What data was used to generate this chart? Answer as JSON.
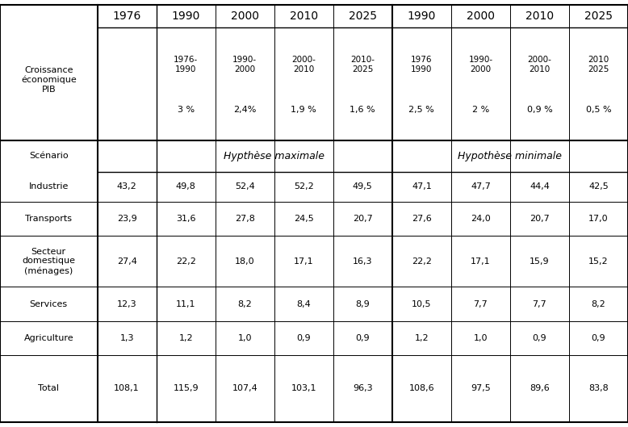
{
  "col_headers_top": [
    "1976",
    "1990",
    "2000",
    "2010",
    "2025",
    "1990",
    "2000",
    "2010",
    "2025"
  ],
  "growth_period_labels": [
    "1976-\n1990",
    "1990-\n2000",
    "2000-\n2010",
    "2010-\n2025",
    "1976\n1990",
    "1990-\n2000",
    "2000-\n2010",
    "2010\n2025"
  ],
  "growth_rates": [
    "3 %",
    "2,4%",
    "1,9 %",
    "1,6 %",
    "2,5 %",
    "2 %",
    "0,9 %",
    "0,5 %"
  ],
  "row_labels": [
    "Industrie",
    "Transports",
    "Secteur\ndomestique\n(ménages)",
    "Services",
    "Agriculture",
    "Total"
  ],
  "col1_1976": [
    "43,2",
    "23,9",
    "27,4",
    "12,3",
    "1,3",
    "108,1"
  ],
  "max_1990": [
    "49,8",
    "31,6",
    "22,2",
    "11,1",
    "1,2",
    "115,9"
  ],
  "max_2000": [
    "52,4",
    "27,8",
    "18,0",
    "8,2",
    "1,0",
    "107,4"
  ],
  "max_2010": [
    "52,2",
    "24,5",
    "17,1",
    "8,4",
    "0,9",
    "103,1"
  ],
  "max_2025": [
    "49,5",
    "20,7",
    "16,3",
    "8,9",
    "0,9",
    "96,3"
  ],
  "min_1990": [
    "47,1",
    "27,6",
    "22,2",
    "10,5",
    "1,2",
    "108,6"
  ],
  "min_2000": [
    "47,7",
    "24,0",
    "17,1",
    "7,7",
    "1,0",
    "97,5"
  ],
  "min_2010": [
    "44,4",
    "20,7",
    "15,9",
    "7,7",
    "0,9",
    "89,6"
  ],
  "min_2025": [
    "42,5",
    "17,0",
    "15,2",
    "8,2",
    "0,9",
    "83,8"
  ],
  "bg_color": "#ffffff",
  "text_color": "#000000",
  "font_size": 9
}
